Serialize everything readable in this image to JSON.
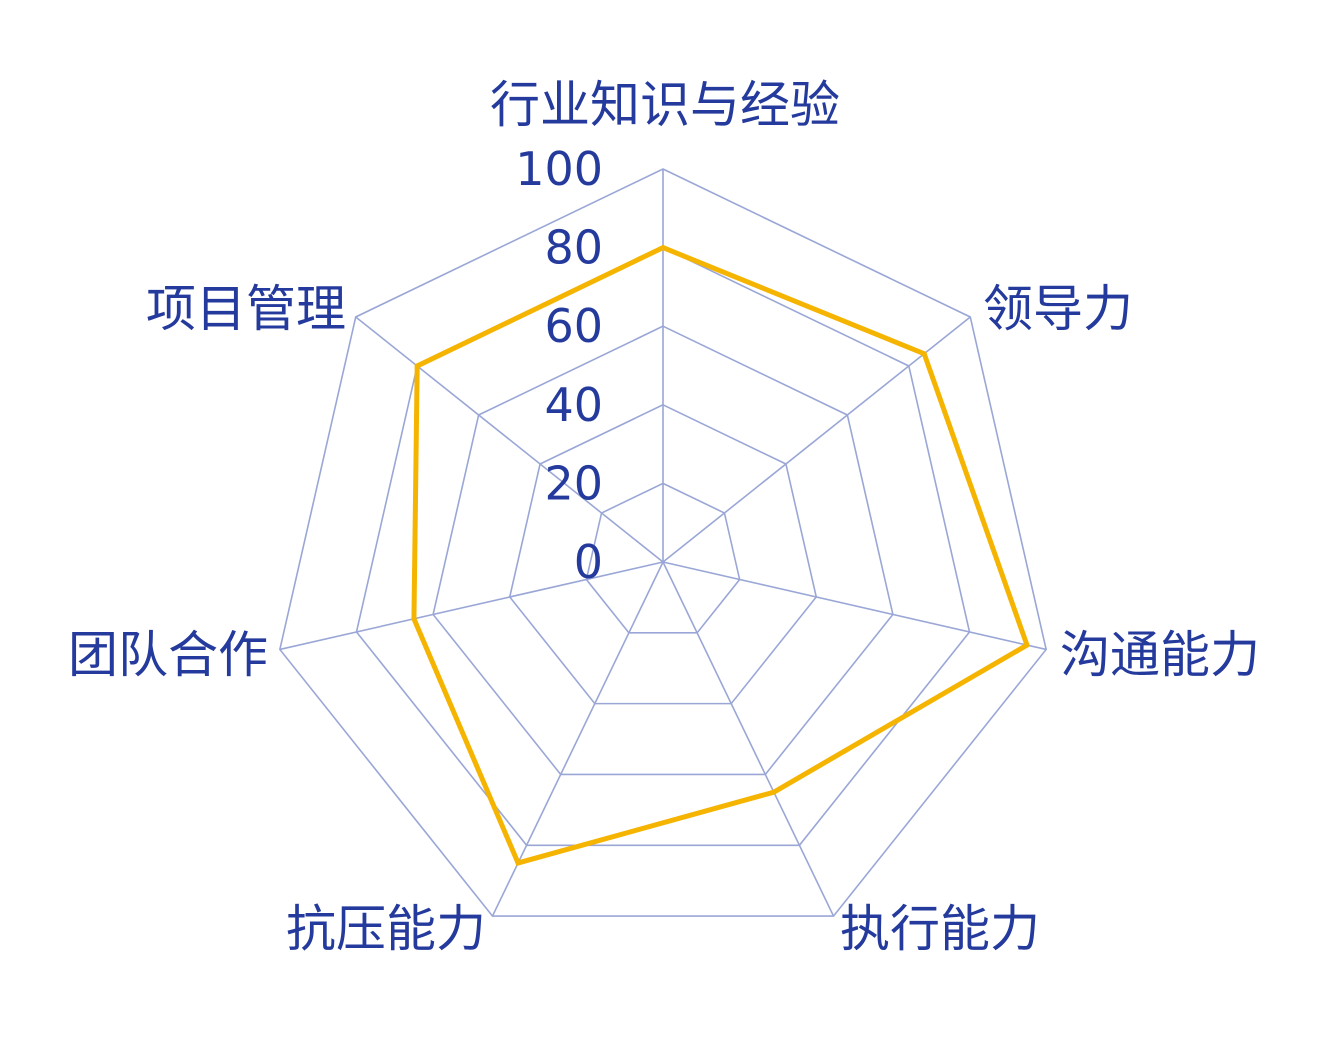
{
  "chart_data": {
    "type": "radar",
    "categories": [
      "行业知识与经验",
      "领导力",
      "沟通能力",
      "执行能力",
      "抗压能力",
      "团队合作",
      "项目管理"
    ],
    "series": [
      {
        "values": [
          80,
          85,
          95,
          65,
          85,
          65,
          80
        ]
      }
    ],
    "rlim": [
      0,
      100
    ],
    "ticks": [
      "0",
      "20",
      "40",
      "60",
      "80",
      "100"
    ],
    "tick_values": [
      0,
      20,
      40,
      60,
      80,
      100
    ],
    "grid": true,
    "legend": "none",
    "colors": {
      "series": "#f5b400",
      "grid": "#9aa7d6",
      "label": "#243a9c"
    }
  }
}
